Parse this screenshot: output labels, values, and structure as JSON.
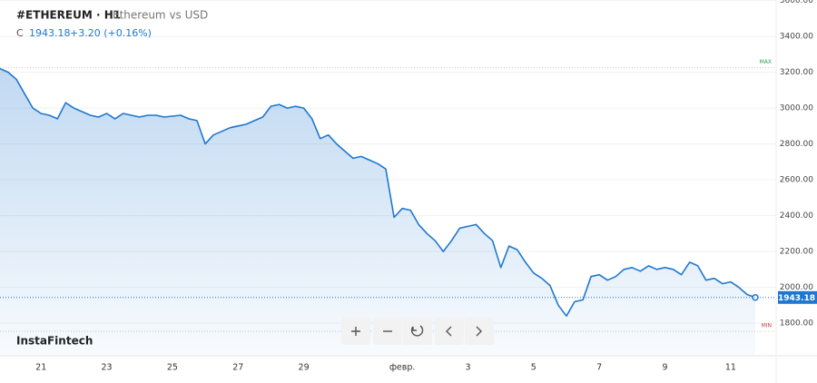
{
  "header": {
    "symbol": "#ETHEREUM · H1",
    "description": "Ethereum vs USD",
    "close_label": "C",
    "close": "1943.18",
    "change": "+3.20 (+0.16%)"
  },
  "watermark": "InstaFintech",
  "chart_data": {
    "type": "line",
    "categories": [
      null,
      null,
      null,
      null,
      null,
      "21",
      null,
      null,
      null,
      null,
      null,
      null,
      null,
      "23",
      null,
      null,
      null,
      null,
      null,
      null,
      null,
      "25",
      null,
      null,
      null,
      null,
      null,
      null,
      null,
      "27",
      null,
      null,
      null,
      null,
      null,
      null,
      null,
      "29",
      null,
      null,
      null,
      null,
      null,
      null,
      null,
      null,
      null,
      null,
      null,
      "февр.",
      null,
      null,
      null,
      null,
      null,
      null,
      null,
      "3",
      null,
      null,
      null,
      null,
      null,
      null,
      null,
      "5",
      null,
      null,
      null,
      null,
      null,
      null,
      null,
      "7",
      null,
      null,
      null,
      null,
      null,
      null,
      null,
      "9",
      null,
      null,
      null,
      null,
      null,
      null,
      null,
      "11",
      null,
      null,
      null
    ],
    "series": [
      {
        "name": "#ETHEREUM",
        "color": "#1f77d0",
        "values": [
          3220,
          3200,
          3160,
          3080,
          3000,
          2970,
          2960,
          2940,
          3030,
          3000,
          2980,
          2960,
          2950,
          2970,
          2940,
          2970,
          2960,
          2950,
          2960,
          2960,
          2950,
          2955,
          2960,
          2940,
          2930,
          2800,
          2850,
          2870,
          2890,
          2900,
          2910,
          2930,
          2950,
          3010,
          3020,
          3000,
          3010,
          3000,
          2940,
          2830,
          2850,
          2800,
          2760,
          2720,
          2730,
          2710,
          2690,
          2660,
          2390,
          2440,
          2430,
          2350,
          2300,
          2260,
          2200,
          2260,
          2330,
          2340,
          2350,
          2300,
          2260,
          2110,
          2230,
          2210,
          2140,
          2080,
          2050,
          2010,
          1900,
          1840,
          1920,
          1930,
          2060,
          2070,
          2040,
          2060,
          2100,
          2110,
          2090,
          2120,
          2100,
          2110,
          2100,
          2070,
          2140,
          2120,
          2040,
          2050,
          2020,
          2030,
          2000,
          1960,
          1943.18
        ]
      }
    ],
    "ylim": [
      1618,
      3603
    ],
    "yticks": [
      {
        "value": 1800,
        "label": "1800.00"
      },
      {
        "value": 2000,
        "label": "2000.00"
      },
      {
        "value": 2200,
        "label": "2200.00"
      },
      {
        "value": 2400,
        "label": "2400.00"
      },
      {
        "value": 2600,
        "label": "2600.00"
      },
      {
        "value": 2800,
        "label": "2800.00"
      },
      {
        "value": 3000,
        "label": "3000.00"
      },
      {
        "value": 3200,
        "label": "3200.00"
      },
      {
        "value": 3400,
        "label": "3400.00"
      },
      {
        "value": 3600,
        "label": "3600.00"
      }
    ],
    "last_price": {
      "value": 1943.18,
      "label": "1943.18"
    },
    "max_line": {
      "value": 3225,
      "label": "MAX"
    },
    "min_line": {
      "value": 1755,
      "label": "MIN"
    }
  }
}
